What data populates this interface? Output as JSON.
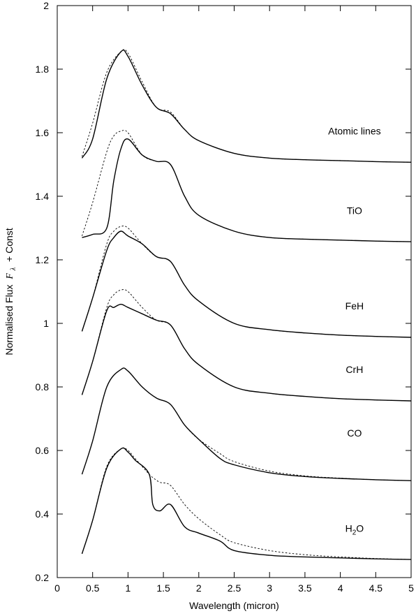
{
  "chart_data": {
    "type": "line",
    "xlabel": "Wavelength (micron)",
    "ylabel": "Normalised Flux",
    "ylabel_symbol": "F",
    "ylabel_subscript": "λ",
    "ylabel_suffix": "+ Const",
    "xlim": [
      0,
      5
    ],
    "ylim": [
      0.2,
      2
    ],
    "x_ticks": [
      {
        "value": 0,
        "label": "0"
      },
      {
        "value": 0.5,
        "label": "0.5"
      },
      {
        "value": 1,
        "label": "1"
      },
      {
        "value": 1.5,
        "label": "1.5"
      },
      {
        "value": 2,
        "label": "2"
      },
      {
        "value": 2.5,
        "label": "2.5"
      },
      {
        "value": 3,
        "label": "3"
      },
      {
        "value": 3.5,
        "label": "3.5"
      },
      {
        "value": 4,
        "label": "4"
      },
      {
        "value": 4.5,
        "label": "4.5"
      },
      {
        "value": 5,
        "label": "5"
      }
    ],
    "y_ticks": [
      {
        "value": 0.2,
        "label": "0.2"
      },
      {
        "value": 0.4,
        "label": "0.4"
      },
      {
        "value": 0.6,
        "label": "0.6"
      },
      {
        "value": 0.8,
        "label": "0.8"
      },
      {
        "value": 1.0,
        "label": "1"
      },
      {
        "value": 1.2,
        "label": "1.2"
      },
      {
        "value": 1.4,
        "label": "1.4"
      },
      {
        "value": 1.6,
        "label": "1.6"
      },
      {
        "value": 1.8,
        "label": "1.8"
      },
      {
        "value": 2.0,
        "label": "2"
      }
    ],
    "grid": false,
    "legend": "none",
    "series": [
      {
        "name": "Atomic lines",
        "offset": 1.25,
        "label_at": {
          "x": 4.2,
          "y": 1.605
        },
        "x": [
          0.35,
          0.5,
          0.7,
          0.9,
          1.0,
          1.2,
          1.4,
          1.6,
          1.8,
          2.0,
          2.5,
          3.0,
          3.5,
          4.0,
          4.5,
          5.0
        ],
        "y": [
          1.52,
          1.58,
          1.77,
          1.855,
          1.84,
          1.75,
          1.68,
          1.66,
          1.61,
          1.575,
          1.535,
          1.52,
          1.515,
          1.512,
          1.509,
          1.507
        ],
        "y_reference": [
          1.525,
          1.63,
          1.79,
          1.855,
          1.85,
          1.76,
          1.68,
          1.665,
          1.61,
          1.575,
          1.535,
          1.52,
          1.515,
          1.512,
          1.509,
          1.507
        ]
      },
      {
        "name": "TiO",
        "offset": 1.0,
        "label_at": {
          "x": 4.2,
          "y": 1.355
        },
        "x": [
          0.35,
          0.5,
          0.7,
          0.8,
          0.9,
          1.0,
          1.2,
          1.4,
          1.6,
          1.8,
          2.0,
          2.5,
          3.0,
          3.5,
          4.0,
          4.5,
          5.0
        ],
        "y": [
          1.27,
          1.28,
          1.3,
          1.45,
          1.55,
          1.58,
          1.53,
          1.51,
          1.5,
          1.4,
          1.34,
          1.29,
          1.27,
          1.265,
          1.262,
          1.259,
          1.257
        ],
        "y_reference": [
          1.275,
          1.38,
          1.54,
          1.59,
          1.605,
          1.6,
          1.53,
          1.51,
          1.5,
          1.4,
          1.34,
          1.29,
          1.27,
          1.265,
          1.262,
          1.259,
          1.257
        ]
      },
      {
        "name": "FeH",
        "offset": 0.7,
        "label_at": {
          "x": 4.2,
          "y": 1.055
        },
        "x": [
          0.35,
          0.5,
          0.7,
          0.8,
          0.9,
          1.0,
          1.2,
          1.4,
          1.6,
          1.8,
          2.0,
          2.5,
          3.0,
          3.5,
          4.0,
          4.5,
          5.0
        ],
        "y": [
          0.975,
          1.08,
          1.23,
          1.27,
          1.29,
          1.275,
          1.25,
          1.21,
          1.195,
          1.12,
          1.07,
          1.0,
          0.98,
          0.97,
          0.963,
          0.959,
          0.956
        ],
        "y_reference": [
          0.975,
          1.08,
          1.25,
          1.29,
          1.305,
          1.3,
          1.25,
          1.21,
          1.195,
          1.12,
          1.07,
          1.0,
          0.98,
          0.97,
          0.963,
          0.959,
          0.956
        ]
      },
      {
        "name": "CrH",
        "offset": 0.5,
        "label_at": {
          "x": 4.2,
          "y": 0.855
        },
        "x": [
          0.35,
          0.5,
          0.7,
          0.8,
          0.9,
          1.0,
          1.2,
          1.4,
          1.6,
          1.8,
          2.0,
          2.5,
          3.0,
          3.5,
          4.0,
          4.5,
          5.0
        ],
        "y": [
          0.775,
          0.88,
          1.04,
          1.05,
          1.06,
          1.05,
          1.03,
          1.01,
          0.995,
          0.92,
          0.87,
          0.8,
          0.78,
          0.77,
          0.763,
          0.759,
          0.756
        ],
        "y_reference": [
          0.775,
          0.88,
          1.05,
          1.09,
          1.105,
          1.1,
          1.05,
          1.01,
          0.995,
          0.92,
          0.87,
          0.8,
          0.78,
          0.77,
          0.763,
          0.759,
          0.756
        ]
      },
      {
        "name": "CO",
        "offset": 0.25,
        "label_at": {
          "x": 4.2,
          "y": 0.655
        },
        "x": [
          0.35,
          0.5,
          0.7,
          0.9,
          1.0,
          1.2,
          1.4,
          1.6,
          1.8,
          2.0,
          2.3,
          2.5,
          3.0,
          3.5,
          4.0,
          4.5,
          5.0
        ],
        "y": [
          0.525,
          0.63,
          0.8,
          0.855,
          0.85,
          0.8,
          0.765,
          0.745,
          0.68,
          0.635,
          0.575,
          0.555,
          0.53,
          0.518,
          0.512,
          0.508,
          0.505
        ],
        "y_reference": [
          0.525,
          0.63,
          0.8,
          0.855,
          0.85,
          0.8,
          0.765,
          0.745,
          0.68,
          0.635,
          0.59,
          0.565,
          0.535,
          0.52,
          0.513,
          0.508,
          0.505
        ]
      },
      {
        "name": "H2O",
        "name_base": "H",
        "name_sub": "2",
        "name_tail": "O",
        "offset": 0.0,
        "label_at": {
          "x": 4.2,
          "y": 0.355
        },
        "x": [
          0.35,
          0.5,
          0.7,
          0.9,
          1.0,
          1.1,
          1.3,
          1.35,
          1.45,
          1.6,
          1.8,
          2.0,
          2.3,
          2.5,
          3.0,
          3.5,
          4.0,
          4.5,
          5.0
        ],
        "y": [
          0.275,
          0.38,
          0.545,
          0.605,
          0.595,
          0.57,
          0.525,
          0.43,
          0.41,
          0.43,
          0.36,
          0.34,
          0.315,
          0.285,
          0.27,
          0.265,
          0.262,
          0.259,
          0.257
        ],
        "y_reference": [
          0.275,
          0.38,
          0.55,
          0.605,
          0.6,
          0.575,
          0.525,
          0.515,
          0.5,
          0.49,
          0.43,
          0.385,
          0.335,
          0.31,
          0.285,
          0.272,
          0.265,
          0.26,
          0.257
        ]
      }
    ]
  }
}
